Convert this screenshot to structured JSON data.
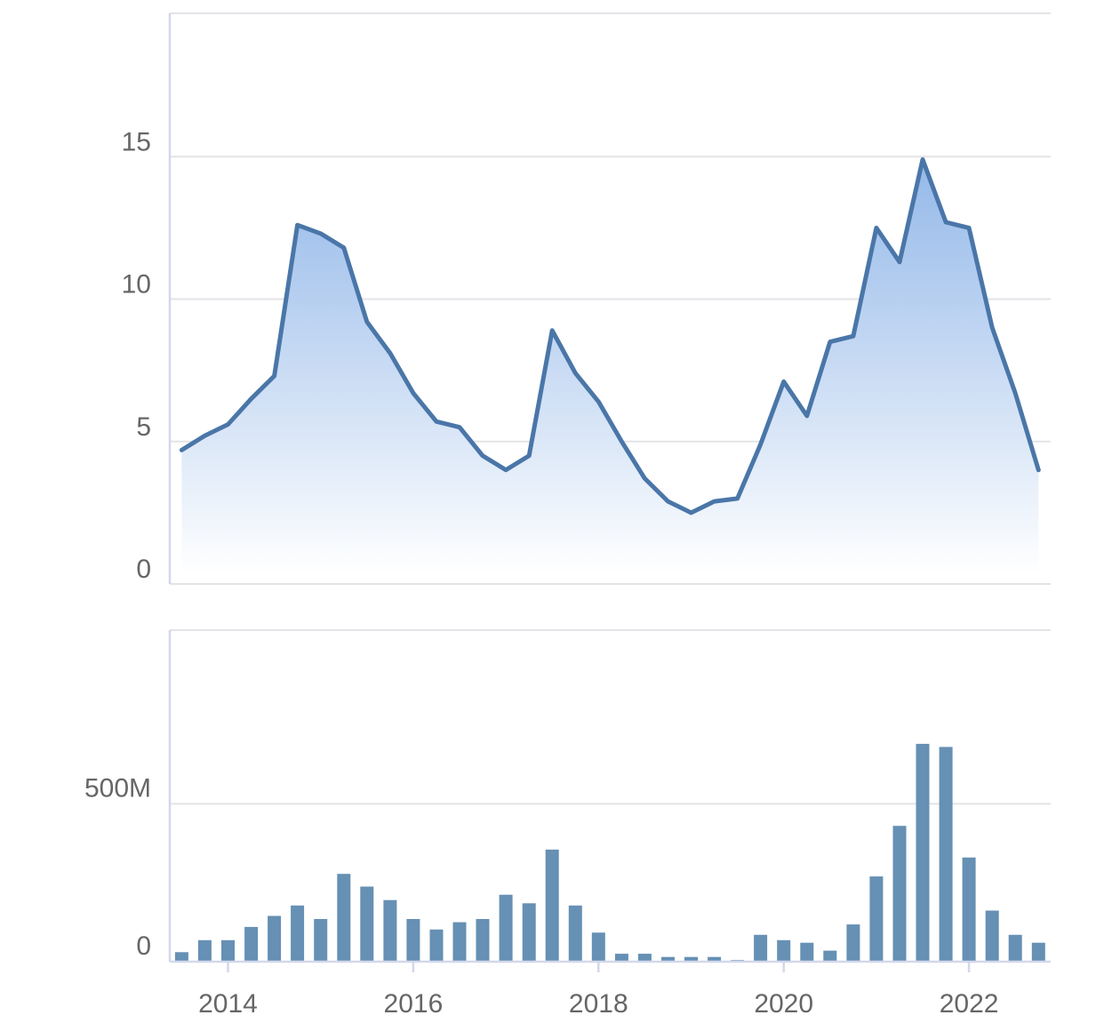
{
  "chart_data": [
    {
      "type": "area",
      "title": "",
      "xlabel": "",
      "ylabel": "",
      "ylim": [
        0,
        20
      ],
      "y_ticks": [
        "0",
        "5",
        "10",
        "15"
      ],
      "y_tick_values": [
        0,
        5,
        10,
        15
      ],
      "grid": true,
      "series": [
        {
          "x": [
            "2013-07",
            "2013-10",
            "2014-01",
            "2014-04",
            "2014-07",
            "2014-10",
            "2015-01",
            "2015-04",
            "2015-07",
            "2015-10",
            "2016-01",
            "2016-04",
            "2016-07",
            "2016-10",
            "2017-01",
            "2017-04",
            "2017-07",
            "2017-10",
            "2018-01",
            "2018-04",
            "2018-07",
            "2018-10",
            "2019-01",
            "2019-04",
            "2019-07",
            "2019-10",
            "2020-01",
            "2020-04",
            "2020-07",
            "2020-10",
            "2021-01",
            "2021-04",
            "2021-07",
            "2021-10",
            "2022-01",
            "2022-04",
            "2022-07",
            "2022-10"
          ],
          "values": [
            4.7,
            5.2,
            5.6,
            6.5,
            7.3,
            12.6,
            12.3,
            11.8,
            9.2,
            8.1,
            6.7,
            5.7,
            5.5,
            4.5,
            4.0,
            4.5,
            8.9,
            7.4,
            6.4,
            5.0,
            3.7,
            2.9,
            2.5,
            2.9,
            3.0,
            4.9,
            7.1,
            5.9,
            8.5,
            8.7,
            12.5,
            11.3,
            14.9,
            12.7,
            12.5,
            9.0,
            6.7,
            4.0
          ]
        }
      ]
    },
    {
      "type": "bar",
      "title": "",
      "xlabel": "",
      "ylabel": "",
      "ylim": [
        0,
        1050000000
      ],
      "y_ticks": [
        "0",
        "500M"
      ],
      "y_tick_values": [
        0,
        500000000
      ],
      "x_ticks": [
        "2014",
        "2016",
        "2018",
        "2020",
        "2022"
      ],
      "grid": true,
      "series": [
        {
          "x": [
            "2013-07",
            "2013-10",
            "2014-01",
            "2014-04",
            "2014-07",
            "2014-10",
            "2015-01",
            "2015-04",
            "2015-07",
            "2015-10",
            "2016-01",
            "2016-04",
            "2016-07",
            "2016-10",
            "2017-01",
            "2017-04",
            "2017-07",
            "2017-10",
            "2018-01",
            "2018-04",
            "2018-07",
            "2018-10",
            "2019-01",
            "2019-04",
            "2019-07",
            "2019-10",
            "2020-01",
            "2020-04",
            "2020-07",
            "2020-10",
            "2021-01",
            "2021-04",
            "2021-07",
            "2021-10",
            "2022-01",
            "2022-04",
            "2022-07",
            "2022-10"
          ],
          "values": [
            30000000,
            68000000,
            68000000,
            110000000,
            145000000,
            178000000,
            135000000,
            278000000,
            238000000,
            195000000,
            135000000,
            102000000,
            125000000,
            135000000,
            212000000,
            185000000,
            355000000,
            178000000,
            92000000,
            25000000,
            25000000,
            15000000,
            15000000,
            15000000,
            5000000,
            85000000,
            68000000,
            60000000,
            35000000,
            118000000,
            270000000,
            430000000,
            690000000,
            680000000,
            330000000,
            162000000,
            85000000,
            60000000
          ]
        }
      ]
    }
  ],
  "colors": {
    "line": "#4a76a8",
    "area_top": "#8fb5e8",
    "area_bottom": "#ffffff",
    "bar": "#6690b4",
    "grid": "#e3e3e8",
    "axis": "#d3d8ea",
    "tick_text": "#666666"
  }
}
